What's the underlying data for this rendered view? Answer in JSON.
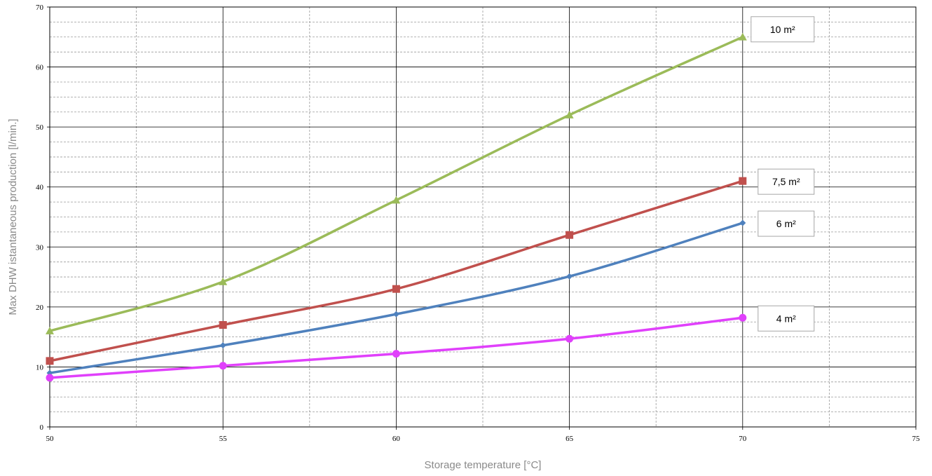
{
  "chart_data": {
    "type": "line",
    "title": "",
    "xlabel": "Storage temperature [°C]",
    "ylabel": "Max DHW istantaneous production [l/min.]",
    "xlim": [
      50,
      75
    ],
    "ylim": [
      0,
      70
    ],
    "x_ticks": [
      "50",
      "55",
      "60",
      "65",
      "70",
      "75"
    ],
    "y_ticks": [
      "0",
      "10",
      "20",
      "30",
      "40",
      "50",
      "60",
      "70"
    ],
    "x_minor_step": 2.5,
    "y_minor_step": 2.5,
    "grid": true,
    "x": [
      50,
      55,
      60,
      65,
      70
    ],
    "series": [
      {
        "name": "10 m²",
        "color": "#9bbb59",
        "marker": "triangle",
        "values": [
          16,
          24.2,
          37.8,
          52,
          65
        ]
      },
      {
        "name": "7,5 m²",
        "color": "#c0504d",
        "marker": "square",
        "values": [
          11,
          17,
          23,
          32,
          41
        ]
      },
      {
        "name": "6 m²",
        "color": "#4f81bd",
        "marker": "diamond",
        "values": [
          9,
          13.6,
          18.8,
          25.1,
          34
        ]
      },
      {
        "name": "4 m²",
        "color": "#e040fb",
        "marker": "circle",
        "values": [
          8.2,
          10.2,
          12.2,
          14.7,
          18.2
        ]
      }
    ]
  }
}
